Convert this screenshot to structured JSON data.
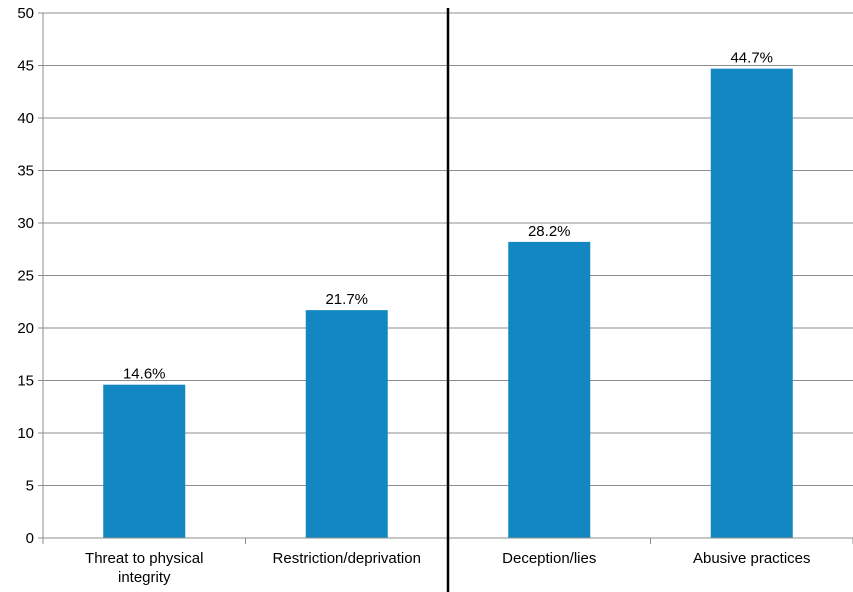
{
  "chart_data": {
    "type": "bar",
    "title": "",
    "xlabel": "",
    "ylabel": "",
    "categories": [
      [
        "Threat to physical",
        "integrity"
      ],
      [
        "Restriction/deprivation"
      ],
      [
        "Deception/lies"
      ],
      [
        "Abusive practices"
      ]
    ],
    "values": [
      14.6,
      21.7,
      28.2,
      44.7
    ],
    "data_labels": [
      "14.6%",
      "21.7%",
      "28.2%",
      "44.7%"
    ],
    "ylim": [
      0,
      50
    ],
    "yticks": [
      "0",
      "5",
      "10",
      "15",
      "20",
      "25",
      "30",
      "35",
      "40",
      "45",
      "50"
    ],
    "grid": true,
    "bar_color": "#1287c2",
    "grid_color": "#8c8c8c",
    "separator": {
      "between_categories": [
        1,
        2
      ],
      "color": "#000000"
    }
  }
}
